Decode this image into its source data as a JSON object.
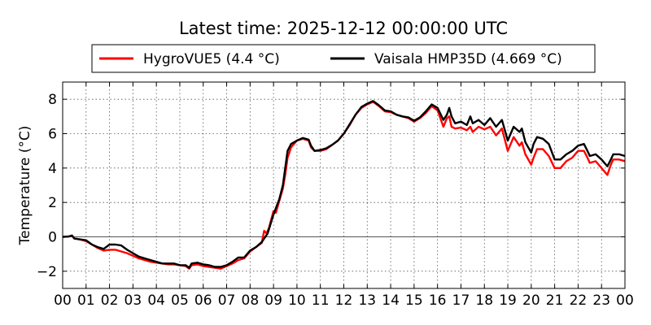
{
  "chart_data": {
    "type": "line",
    "title": "Latest time: 2025-12-12 00:00:00 UTC",
    "xlabel": "",
    "ylabel": "Temperature (°C)",
    "xlim": [
      0,
      24
    ],
    "ylim": [
      -3,
      9
    ],
    "xticks": [
      {
        "value": 0,
        "label": "00"
      },
      {
        "value": 1,
        "label": "01"
      },
      {
        "value": 2,
        "label": "02"
      },
      {
        "value": 3,
        "label": "03"
      },
      {
        "value": 4,
        "label": "04"
      },
      {
        "value": 5,
        "label": "05"
      },
      {
        "value": 6,
        "label": "06"
      },
      {
        "value": 7,
        "label": "07"
      },
      {
        "value": 8,
        "label": "08"
      },
      {
        "value": 9,
        "label": "09"
      },
      {
        "value": 10,
        "label": "10"
      },
      {
        "value": 11,
        "label": "11"
      },
      {
        "value": 12,
        "label": "12"
      },
      {
        "value": 13,
        "label": "13"
      },
      {
        "value": 14,
        "label": "14"
      },
      {
        "value": 15,
        "label": "15"
      },
      {
        "value": 16,
        "label": "16"
      },
      {
        "value": 17,
        "label": "17"
      },
      {
        "value": 18,
        "label": "18"
      },
      {
        "value": 19,
        "label": "19"
      },
      {
        "value": 20,
        "label": "20"
      },
      {
        "value": 21,
        "label": "21"
      },
      {
        "value": 22,
        "label": "22"
      },
      {
        "value": 23,
        "label": "23"
      },
      {
        "value": 24,
        "label": "00"
      }
    ],
    "yticks": [
      {
        "value": -2,
        "label": "−2"
      },
      {
        "value": 0,
        "label": "0"
      },
      {
        "value": 2,
        "label": "2"
      },
      {
        "value": 4,
        "label": "4"
      },
      {
        "value": 6,
        "label": "6"
      },
      {
        "value": 8,
        "label": "8"
      }
    ],
    "grid": true,
    "legend_position": "top-center",
    "series": [
      {
        "name": "HygroVUE5 (4.4 °C)",
        "color": "#ff0000",
        "points": [
          [
            0,
            0.0
          ],
          [
            0.25,
            0.02
          ],
          [
            0.4,
            0.05
          ],
          [
            0.5,
            -0.1
          ],
          [
            0.75,
            -0.15
          ],
          [
            1.0,
            -0.25
          ],
          [
            1.25,
            -0.45
          ],
          [
            1.5,
            -0.65
          ],
          [
            1.75,
            -0.8
          ],
          [
            2.0,
            -0.75
          ],
          [
            2.25,
            -0.75
          ],
          [
            2.5,
            -0.85
          ],
          [
            2.75,
            -0.95
          ],
          [
            3.0,
            -1.1
          ],
          [
            3.25,
            -1.25
          ],
          [
            3.5,
            -1.35
          ],
          [
            3.75,
            -1.45
          ],
          [
            4.0,
            -1.5
          ],
          [
            4.25,
            -1.55
          ],
          [
            4.5,
            -1.6
          ],
          [
            4.75,
            -1.6
          ],
          [
            5.0,
            -1.65
          ],
          [
            5.25,
            -1.7
          ],
          [
            5.4,
            -1.85
          ],
          [
            5.5,
            -1.65
          ],
          [
            5.75,
            -1.6
          ],
          [
            6.0,
            -1.7
          ],
          [
            6.25,
            -1.75
          ],
          [
            6.5,
            -1.8
          ],
          [
            6.75,
            -1.85
          ],
          [
            7.0,
            -1.7
          ],
          [
            7.25,
            -1.55
          ],
          [
            7.5,
            -1.35
          ],
          [
            7.75,
            -1.25
          ],
          [
            8.0,
            -0.85
          ],
          [
            8.25,
            -0.6
          ],
          [
            8.5,
            -0.35
          ],
          [
            8.6,
            0.35
          ],
          [
            8.7,
            0.2
          ],
          [
            8.8,
            0.5
          ],
          [
            9.0,
            1.5
          ],
          [
            9.1,
            1.4
          ],
          [
            9.25,
            2.1
          ],
          [
            9.4,
            2.8
          ],
          [
            9.5,
            3.6
          ],
          [
            9.6,
            4.6
          ],
          [
            9.75,
            5.2
          ],
          [
            10.0,
            5.6
          ],
          [
            10.25,
            5.7
          ],
          [
            10.5,
            5.6
          ],
          [
            10.6,
            5.2
          ],
          [
            10.75,
            5.0
          ],
          [
            11.0,
            5.0
          ],
          [
            11.25,
            5.1
          ],
          [
            11.5,
            5.35
          ],
          [
            11.75,
            5.6
          ],
          [
            12.0,
            6.0
          ],
          [
            12.25,
            6.5
          ],
          [
            12.5,
            7.1
          ],
          [
            12.75,
            7.5
          ],
          [
            13.0,
            7.7
          ],
          [
            13.25,
            7.85
          ],
          [
            13.5,
            7.6
          ],
          [
            13.75,
            7.3
          ],
          [
            14.0,
            7.25
          ],
          [
            14.25,
            7.1
          ],
          [
            14.5,
            7.0
          ],
          [
            14.75,
            6.9
          ],
          [
            15.0,
            6.7
          ],
          [
            15.25,
            6.9
          ],
          [
            15.5,
            7.2
          ],
          [
            15.75,
            7.6
          ],
          [
            16.0,
            7.35
          ],
          [
            16.25,
            6.4
          ],
          [
            16.4,
            6.9
          ],
          [
            16.5,
            7.0
          ],
          [
            16.6,
            6.4
          ],
          [
            16.75,
            6.3
          ],
          [
            17.0,
            6.35
          ],
          [
            17.25,
            6.2
          ],
          [
            17.4,
            6.4
          ],
          [
            17.5,
            6.1
          ],
          [
            17.75,
            6.4
          ],
          [
            18.0,
            6.25
          ],
          [
            18.25,
            6.4
          ],
          [
            18.5,
            5.9
          ],
          [
            18.75,
            6.3
          ],
          [
            19.0,
            5.0
          ],
          [
            19.25,
            5.8
          ],
          [
            19.5,
            5.3
          ],
          [
            19.6,
            5.5
          ],
          [
            19.75,
            4.8
          ],
          [
            20.0,
            4.2
          ],
          [
            20.1,
            4.6
          ],
          [
            20.25,
            5.1
          ],
          [
            20.5,
            5.1
          ],
          [
            20.75,
            4.7
          ],
          [
            21.0,
            4.0
          ],
          [
            21.25,
            4.0
          ],
          [
            21.5,
            4.4
          ],
          [
            21.75,
            4.6
          ],
          [
            22.0,
            5.0
          ],
          [
            22.25,
            5.0
          ],
          [
            22.4,
            4.6
          ],
          [
            22.5,
            4.3
          ],
          [
            22.75,
            4.4
          ],
          [
            23.0,
            4.0
          ],
          [
            23.25,
            3.6
          ],
          [
            23.4,
            4.2
          ],
          [
            23.5,
            4.5
          ],
          [
            23.75,
            4.5
          ],
          [
            24.0,
            4.4
          ]
        ]
      },
      {
        "name": "Vaisala HMP35D (4.669 °C)",
        "color": "#000000",
        "points": [
          [
            0,
            0.0
          ],
          [
            0.25,
            0.02
          ],
          [
            0.4,
            0.08
          ],
          [
            0.5,
            -0.1
          ],
          [
            0.75,
            -0.15
          ],
          [
            1.0,
            -0.2
          ],
          [
            1.25,
            -0.45
          ],
          [
            1.5,
            -0.6
          ],
          [
            1.75,
            -0.7
          ],
          [
            2.0,
            -0.45
          ],
          [
            2.25,
            -0.45
          ],
          [
            2.5,
            -0.5
          ],
          [
            2.75,
            -0.75
          ],
          [
            3.0,
            -0.95
          ],
          [
            3.25,
            -1.15
          ],
          [
            3.5,
            -1.25
          ],
          [
            3.75,
            -1.35
          ],
          [
            4.0,
            -1.45
          ],
          [
            4.25,
            -1.55
          ],
          [
            4.5,
            -1.55
          ],
          [
            4.75,
            -1.55
          ],
          [
            5.0,
            -1.65
          ],
          [
            5.25,
            -1.65
          ],
          [
            5.4,
            -1.8
          ],
          [
            5.5,
            -1.55
          ],
          [
            5.75,
            -1.5
          ],
          [
            6.0,
            -1.6
          ],
          [
            6.25,
            -1.65
          ],
          [
            6.5,
            -1.75
          ],
          [
            6.75,
            -1.75
          ],
          [
            7.0,
            -1.65
          ],
          [
            7.25,
            -1.45
          ],
          [
            7.5,
            -1.2
          ],
          [
            7.75,
            -1.2
          ],
          [
            8.0,
            -0.8
          ],
          [
            8.25,
            -0.6
          ],
          [
            8.5,
            -0.3
          ],
          [
            8.6,
            -0.1
          ],
          [
            8.75,
            0.2
          ],
          [
            9.0,
            1.3
          ],
          [
            9.25,
            2.2
          ],
          [
            9.4,
            3.0
          ],
          [
            9.5,
            4.0
          ],
          [
            9.6,
            5.0
          ],
          [
            9.75,
            5.4
          ],
          [
            10.0,
            5.6
          ],
          [
            10.25,
            5.75
          ],
          [
            10.5,
            5.65
          ],
          [
            10.6,
            5.3
          ],
          [
            10.75,
            5.0
          ],
          [
            11.0,
            5.05
          ],
          [
            11.25,
            5.15
          ],
          [
            11.5,
            5.35
          ],
          [
            11.75,
            5.6
          ],
          [
            12.0,
            6.0
          ],
          [
            12.25,
            6.55
          ],
          [
            12.5,
            7.1
          ],
          [
            12.75,
            7.55
          ],
          [
            13.0,
            7.75
          ],
          [
            13.25,
            7.9
          ],
          [
            13.5,
            7.65
          ],
          [
            13.75,
            7.35
          ],
          [
            14.0,
            7.3
          ],
          [
            14.25,
            7.1
          ],
          [
            14.5,
            7.0
          ],
          [
            14.75,
            6.95
          ],
          [
            15.0,
            6.75
          ],
          [
            15.25,
            6.95
          ],
          [
            15.5,
            7.3
          ],
          [
            15.75,
            7.7
          ],
          [
            16.0,
            7.5
          ],
          [
            16.25,
            6.8
          ],
          [
            16.4,
            7.1
          ],
          [
            16.5,
            7.5
          ],
          [
            16.6,
            7.0
          ],
          [
            16.75,
            6.6
          ],
          [
            17.0,
            6.7
          ],
          [
            17.25,
            6.5
          ],
          [
            17.4,
            7.0
          ],
          [
            17.5,
            6.6
          ],
          [
            17.75,
            6.8
          ],
          [
            18.0,
            6.5
          ],
          [
            18.25,
            6.9
          ],
          [
            18.5,
            6.4
          ],
          [
            18.75,
            6.8
          ],
          [
            19.0,
            5.6
          ],
          [
            19.25,
            6.4
          ],
          [
            19.5,
            6.1
          ],
          [
            19.6,
            6.3
          ],
          [
            19.75,
            5.5
          ],
          [
            20.0,
            4.9
          ],
          [
            20.1,
            5.4
          ],
          [
            20.25,
            5.8
          ],
          [
            20.5,
            5.7
          ],
          [
            20.75,
            5.4
          ],
          [
            21.0,
            4.5
          ],
          [
            21.25,
            4.5
          ],
          [
            21.5,
            4.8
          ],
          [
            21.75,
            5.0
          ],
          [
            22.0,
            5.3
          ],
          [
            22.25,
            5.4
          ],
          [
            22.4,
            5.0
          ],
          [
            22.5,
            4.7
          ],
          [
            22.75,
            4.8
          ],
          [
            23.0,
            4.5
          ],
          [
            23.25,
            4.1
          ],
          [
            23.4,
            4.5
          ],
          [
            23.5,
            4.8
          ],
          [
            23.75,
            4.8
          ],
          [
            24.0,
            4.7
          ]
        ]
      }
    ]
  }
}
